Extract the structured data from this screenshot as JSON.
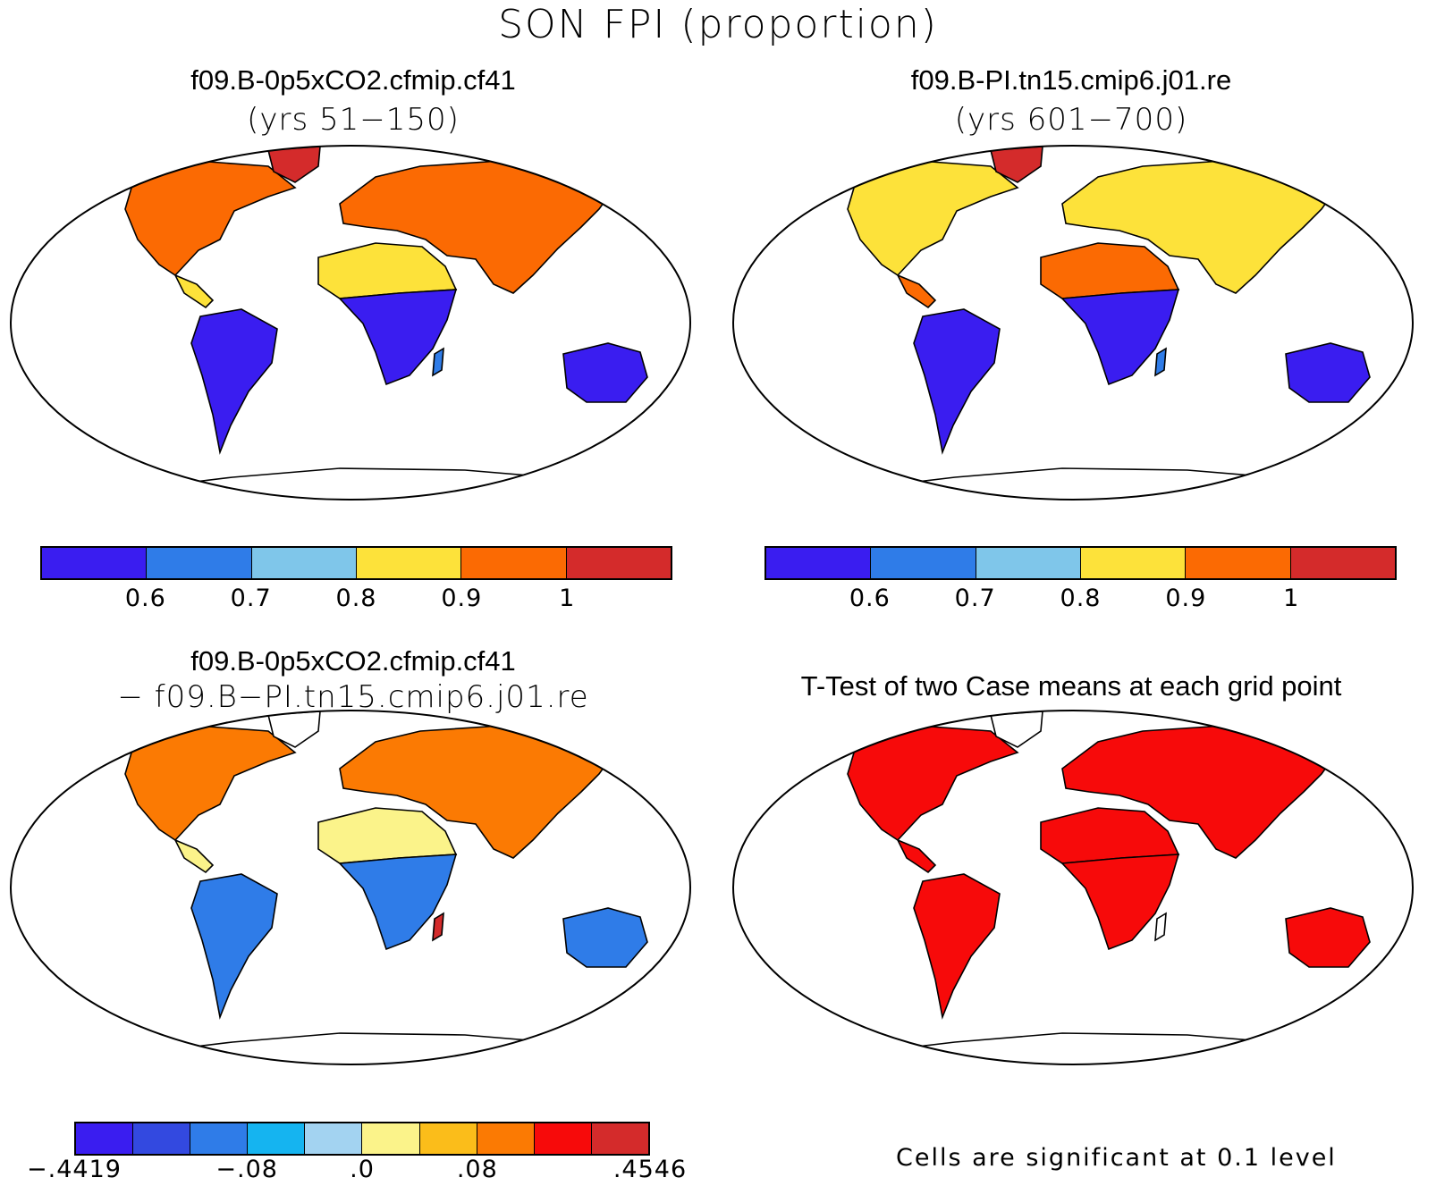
{
  "figure_title": "SON FPI (proportion)",
  "panels": [
    {
      "title": "f09.B-0p5xCO2.cfmip.cf41",
      "subtitle": "(yrs 51−150)"
    },
    {
      "title": "f09.B-PI.tn15.cmip6.j01.re",
      "subtitle": "(yrs 601−700)"
    },
    {
      "title": "f09.B-0p5xCO2.cfmip.cf41",
      "subtitle": "− f09.B−PI.tn15.cmip6.j01.re"
    },
    {
      "title": "T-Test of two Case means at each grid point",
      "subtitle": ""
    }
  ],
  "colorbar_abs": {
    "colors": [
      "#3a1df0",
      "#2f7ce8",
      "#7fc6ea",
      "#fde23a",
      "#fb6a03",
      "#d42b2b"
    ],
    "ticks": [
      "0.6",
      "0.7",
      "0.8",
      "0.9",
      "1"
    ]
  },
  "colorbar_diff": {
    "colors": [
      "#3a1df0",
      "#3349e0",
      "#2f7ce8",
      "#15b4f0",
      "#a3d3f1",
      "#fbf38a",
      "#fbbd1a",
      "#fb7a03",
      "#f70a0a",
      "#d42b2b"
    ],
    "ticks": [
      "−.4419",
      "−.08",
      ".0",
      ".08",
      ".4546"
    ]
  },
  "ttest_note": "Cells are significant at 0.1 level",
  "land_colors": {
    "abs1": {
      "north": "#fb6a03",
      "tropics": "#fde23a",
      "south": "#3a1df0",
      "mid": "#2f7ce8",
      "greenland": "#d42b2b"
    },
    "abs2": {
      "north": "#fde23a",
      "tropics": "#fb6a03",
      "south": "#3a1df0",
      "mid": "#2f7ce8",
      "greenland": "#d42b2b"
    },
    "diff": {
      "north": "#fb7a03",
      "tropics": "#fbf38a",
      "south": "#2f7ce8",
      "mid": "#d42b2b",
      "greenland": "#ffffff"
    },
    "ttest": {
      "north": "#f70a0a",
      "tropics": "#f70a0a",
      "south": "#f70a0a",
      "mid": "#ffffff",
      "greenland": "#ffffff"
    }
  }
}
